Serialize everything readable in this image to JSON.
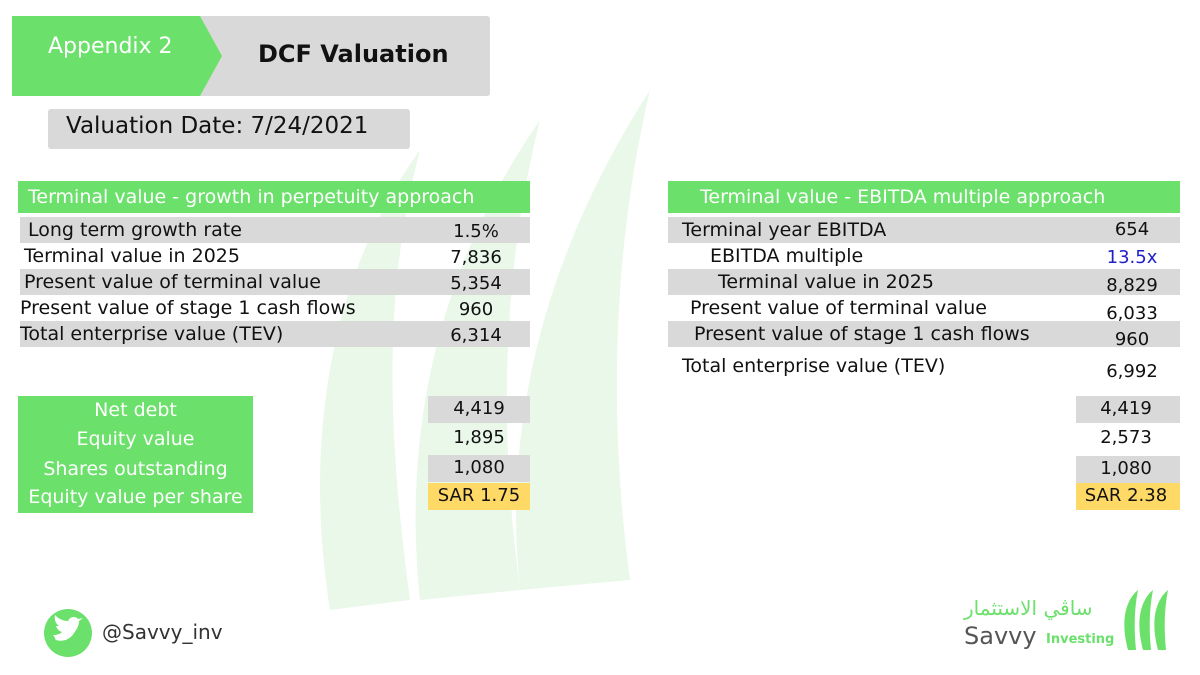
{
  "header": {
    "tag": "Appendix 2",
    "title": "DCF Valuation",
    "valuation_date": "Valuation Date: 7/24/2021"
  },
  "left": {
    "title": "Terminal value - growth in perpetuity approach",
    "rows": [
      [
        "Long term growth rate",
        "1.5%"
      ],
      [
        "Terminal value in 2025",
        "7,836"
      ],
      [
        "Present value of terminal value",
        "5,354"
      ],
      [
        "Present value of stage 1 cash flows",
        "960"
      ],
      [
        "Total enterprise value (TEV)",
        "6,314"
      ]
    ],
    "equity": [
      [
        "Net debt",
        "4,419"
      ],
      [
        "Equity value",
        "1,895"
      ],
      [
        "Shares outstanding",
        "1,080"
      ],
      [
        "Equity value per share",
        "SAR 1.75"
      ]
    ]
  },
  "right": {
    "title": "Terminal value - EBITDA multiple approach",
    "rows": [
      [
        "Terminal year EBITDA",
        "654"
      ],
      [
        "EBITDA multiple",
        "13.5x"
      ],
      [
        "Terminal value in 2025",
        "8,829"
      ],
      [
        "Present value of terminal value",
        "6,033"
      ],
      [
        "Present value of stage 1 cash flows",
        "960"
      ],
      [
        "Total enterprise value (TEV)",
        "6,992"
      ]
    ],
    "equity_values": [
      "4,419",
      "2,573",
      "1,080",
      "SAR 2.38"
    ]
  },
  "footer": {
    "handle": "@Savvy_inv",
    "brand_arabic": "ساڤي الاستثمار",
    "brand": "Savvy",
    "brand_sub": "Investing"
  }
}
